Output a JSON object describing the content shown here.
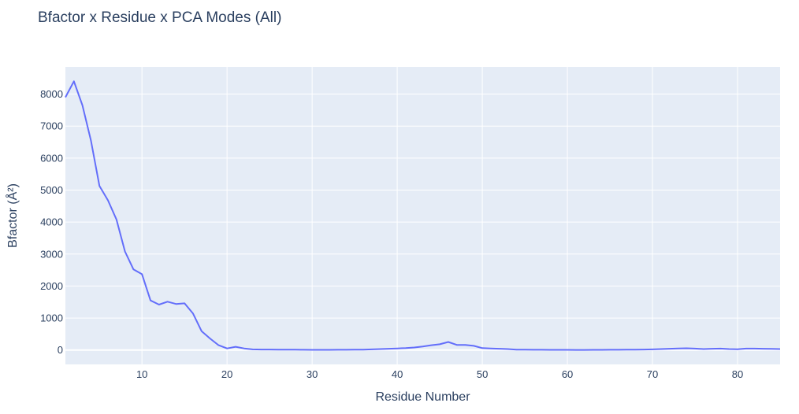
{
  "chart_data": {
    "type": "line",
    "title": "Bfactor x Residue x PCA Modes (All)",
    "xlabel": "Residue Number",
    "ylabel": "Bfactor (Å²)",
    "xlim": [
      1,
      85
    ],
    "ylim": [
      -450,
      8850
    ],
    "x_ticks": [
      10,
      20,
      30,
      40,
      50,
      60,
      70,
      80
    ],
    "y_ticks": [
      0,
      1000,
      2000,
      3000,
      4000,
      5000,
      6000,
      7000,
      8000
    ],
    "grid": true,
    "colors": {
      "line": "#636efa",
      "plot_bg": "#e5ecf6",
      "grid": "#ffffff",
      "text": "#2a3f5f"
    },
    "series": [
      {
        "x": [
          1,
          2,
          3,
          4,
          5,
          6,
          7,
          8,
          9,
          10,
          11,
          12,
          13,
          14,
          15,
          16,
          17,
          18,
          19,
          20,
          21,
          22,
          23,
          24,
          25,
          26,
          27,
          28,
          29,
          30,
          31,
          32,
          33,
          34,
          35,
          36,
          37,
          38,
          39,
          40,
          41,
          42,
          43,
          44,
          45,
          46,
          47,
          48,
          49,
          50,
          51,
          52,
          53,
          54,
          55,
          56,
          57,
          58,
          59,
          60,
          61,
          62,
          63,
          64,
          65,
          66,
          67,
          68,
          69,
          70,
          71,
          72,
          73,
          74,
          75,
          76,
          77,
          78,
          79,
          80,
          81,
          82,
          83,
          84,
          85
        ],
        "values": [
          7900,
          8400,
          7650,
          6550,
          5130,
          4680,
          4080,
          3080,
          2520,
          2370,
          1550,
          1420,
          1510,
          1440,
          1460,
          1140,
          590,
          360,
          150,
          50,
          100,
          50,
          20,
          15,
          15,
          12,
          10,
          10,
          8,
          5,
          5,
          5,
          8,
          8,
          10,
          10,
          20,
          30,
          40,
          50,
          60,
          80,
          110,
          150,
          180,
          250,
          160,
          160,
          130,
          60,
          50,
          40,
          30,
          10,
          10,
          8,
          8,
          6,
          5,
          5,
          3,
          3,
          4,
          5,
          7,
          8,
          10,
          12,
          15,
          20,
          30,
          40,
          50,
          55,
          45,
          30,
          40,
          45,
          30,
          25,
          45,
          45,
          40,
          35,
          30
        ]
      }
    ]
  }
}
